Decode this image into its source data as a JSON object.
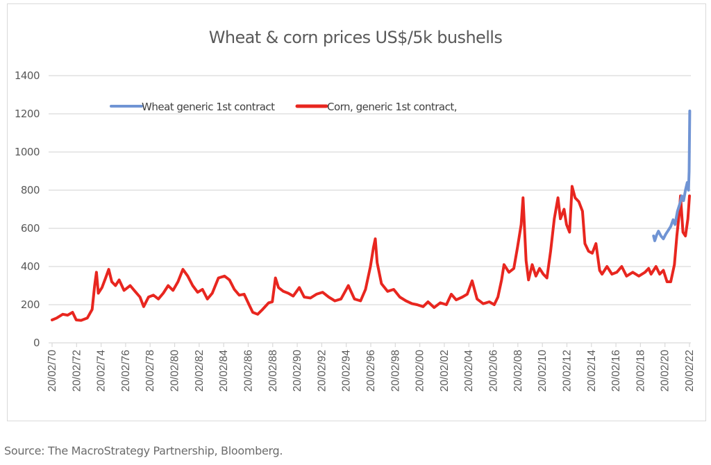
{
  "chart_data": {
    "type": "line",
    "title": "Wheat & corn prices US$/5k bushells",
    "xlabel": "",
    "ylabel": "",
    "ylim": [
      0,
      1400
    ],
    "yticks": [
      0,
      200,
      400,
      600,
      800,
      1000,
      1200,
      1400
    ],
    "xlim": [
      1970.13,
      2022.13
    ],
    "xtick_years": [
      1970,
      1972,
      1974,
      1976,
      1978,
      1980,
      1982,
      1984,
      1986,
      1988,
      1990,
      1992,
      1994,
      1996,
      1998,
      2000,
      2002,
      2004,
      2006,
      2008,
      2010,
      2012,
      2014,
      2016,
      2018,
      2020,
      2022
    ],
    "xtick_labels": [
      "20/02/70",
      "20/02/72",
      "20/02/74",
      "20/02/76",
      "20/02/78",
      "20/02/80",
      "20/02/82",
      "20/02/84",
      "20/02/86",
      "20/02/88",
      "20/02/90",
      "20/02/92",
      "20/02/94",
      "20/02/96",
      "20/02/98",
      "20/02/00",
      "20/02/02",
      "20/02/04",
      "20/02/06",
      "20/02/08",
      "20/02/10",
      "20/02/12",
      "20/02/14",
      "20/02/16",
      "20/02/18",
      "20/02/20",
      "20/02/22"
    ],
    "grid": true,
    "legend_position": "top-left",
    "series": [
      {
        "name": "Wheat generic 1st contract",
        "color": "#7094d4",
        "points": [
          [
            2019.2,
            560
          ],
          [
            2019.3,
            535
          ],
          [
            2019.45,
            565
          ],
          [
            2019.6,
            585
          ],
          [
            2019.8,
            560
          ],
          [
            2020.0,
            545
          ],
          [
            2020.2,
            570
          ],
          [
            2020.4,
            590
          ],
          [
            2020.6,
            610
          ],
          [
            2020.8,
            645
          ],
          [
            2020.95,
            620
          ],
          [
            2021.15,
            690
          ],
          [
            2021.35,
            730
          ],
          [
            2021.5,
            770
          ],
          [
            2021.65,
            745
          ],
          [
            2021.8,
            800
          ],
          [
            2021.95,
            840
          ],
          [
            2022.05,
            800
          ],
          [
            2022.1,
            900
          ],
          [
            2022.15,
            1215
          ]
        ]
      },
      {
        "name": "Corn, generic 1st contract,",
        "color": "#e8261f",
        "points": [
          [
            1970.13,
            120
          ],
          [
            1970.5,
            130
          ],
          [
            1971.0,
            150
          ],
          [
            1971.4,
            145
          ],
          [
            1971.8,
            160
          ],
          [
            1972.1,
            120
          ],
          [
            1972.5,
            118
          ],
          [
            1973.0,
            130
          ],
          [
            1973.4,
            175
          ],
          [
            1973.6,
            300
          ],
          [
            1973.75,
            370
          ],
          [
            1973.9,
            260
          ],
          [
            1974.2,
            290
          ],
          [
            1974.5,
            340
          ],
          [
            1974.75,
            385
          ],
          [
            1975.0,
            320
          ],
          [
            1975.3,
            300
          ],
          [
            1975.6,
            330
          ],
          [
            1976.0,
            275
          ],
          [
            1976.5,
            300
          ],
          [
            1976.9,
            270
          ],
          [
            1977.3,
            240
          ],
          [
            1977.6,
            190
          ],
          [
            1978.0,
            240
          ],
          [
            1978.4,
            250
          ],
          [
            1978.8,
            230
          ],
          [
            1979.2,
            260
          ],
          [
            1979.6,
            300
          ],
          [
            1980.0,
            275
          ],
          [
            1980.4,
            320
          ],
          [
            1980.8,
            385
          ],
          [
            1981.2,
            350
          ],
          [
            1981.6,
            300
          ],
          [
            1982.0,
            265
          ],
          [
            1982.4,
            280
          ],
          [
            1982.8,
            230
          ],
          [
            1983.2,
            260
          ],
          [
            1983.7,
            340
          ],
          [
            1984.2,
            350
          ],
          [
            1984.6,
            330
          ],
          [
            1985.0,
            280
          ],
          [
            1985.4,
            250
          ],
          [
            1985.8,
            255
          ],
          [
            1986.2,
            200
          ],
          [
            1986.5,
            160
          ],
          [
            1986.9,
            150
          ],
          [
            1987.3,
            175
          ],
          [
            1987.8,
            210
          ],
          [
            1988.1,
            215
          ],
          [
            1988.35,
            340
          ],
          [
            1988.6,
            290
          ],
          [
            1989.0,
            270
          ],
          [
            1989.4,
            260
          ],
          [
            1989.8,
            245
          ],
          [
            1990.3,
            290
          ],
          [
            1990.7,
            240
          ],
          [
            1991.2,
            235
          ],
          [
            1991.7,
            255
          ],
          [
            1992.2,
            265
          ],
          [
            1992.7,
            240
          ],
          [
            1993.2,
            220
          ],
          [
            1993.7,
            230
          ],
          [
            1994.3,
            300
          ],
          [
            1994.8,
            230
          ],
          [
            1995.3,
            220
          ],
          [
            1995.7,
            280
          ],
          [
            1996.1,
            400
          ],
          [
            1996.35,
            500
          ],
          [
            1996.5,
            545
          ],
          [
            1996.65,
            420
          ],
          [
            1997.0,
            310
          ],
          [
            1997.5,
            270
          ],
          [
            1998.0,
            280
          ],
          [
            1998.5,
            240
          ],
          [
            1999.0,
            220
          ],
          [
            1999.5,
            205
          ],
          [
            1999.9,
            200
          ],
          [
            2000.4,
            190
          ],
          [
            2000.8,
            215
          ],
          [
            2001.3,
            185
          ],
          [
            2001.8,
            210
          ],
          [
            2002.3,
            200
          ],
          [
            2002.7,
            255
          ],
          [
            2003.1,
            225
          ],
          [
            2003.6,
            240
          ],
          [
            2004.0,
            255
          ],
          [
            2004.4,
            325
          ],
          [
            2004.8,
            230
          ],
          [
            2005.3,
            205
          ],
          [
            2005.8,
            215
          ],
          [
            2006.2,
            200
          ],
          [
            2006.5,
            240
          ],
          [
            2006.8,
            330
          ],
          [
            2007.0,
            410
          ],
          [
            2007.4,
            370
          ],
          [
            2007.8,
            390
          ],
          [
            2008.1,
            500
          ],
          [
            2008.4,
            620
          ],
          [
            2008.55,
            760
          ],
          [
            2008.8,
            430
          ],
          [
            2009.0,
            330
          ],
          [
            2009.3,
            410
          ],
          [
            2009.6,
            350
          ],
          [
            2009.9,
            390
          ],
          [
            2010.2,
            360
          ],
          [
            2010.5,
            340
          ],
          [
            2010.8,
            480
          ],
          [
            2011.1,
            650
          ],
          [
            2011.4,
            760
          ],
          [
            2011.6,
            650
          ],
          [
            2011.9,
            700
          ],
          [
            2012.1,
            620
          ],
          [
            2012.35,
            580
          ],
          [
            2012.55,
            820
          ],
          [
            2012.8,
            760
          ],
          [
            2013.1,
            740
          ],
          [
            2013.4,
            690
          ],
          [
            2013.6,
            520
          ],
          [
            2013.9,
            480
          ],
          [
            2014.2,
            470
          ],
          [
            2014.5,
            520
          ],
          [
            2014.8,
            380
          ],
          [
            2015.0,
            360
          ],
          [
            2015.4,
            400
          ],
          [
            2015.8,
            360
          ],
          [
            2016.2,
            370
          ],
          [
            2016.6,
            400
          ],
          [
            2017.0,
            350
          ],
          [
            2017.5,
            370
          ],
          [
            2018.0,
            350
          ],
          [
            2018.5,
            370
          ],
          [
            2018.8,
            390
          ],
          [
            2019.0,
            360
          ],
          [
            2019.4,
            400
          ],
          [
            2019.7,
            360
          ],
          [
            2020.0,
            380
          ],
          [
            2020.3,
            320
          ],
          [
            2020.6,
            320
          ],
          [
            2020.9,
            410
          ],
          [
            2021.1,
            560
          ],
          [
            2021.3,
            680
          ],
          [
            2021.4,
            770
          ],
          [
            2021.6,
            580
          ],
          [
            2021.8,
            560
          ],
          [
            2022.0,
            650
          ],
          [
            2022.13,
            770
          ]
        ]
      }
    ]
  },
  "source_note": "Source: The MacroStrategy Partnership, Bloomberg."
}
